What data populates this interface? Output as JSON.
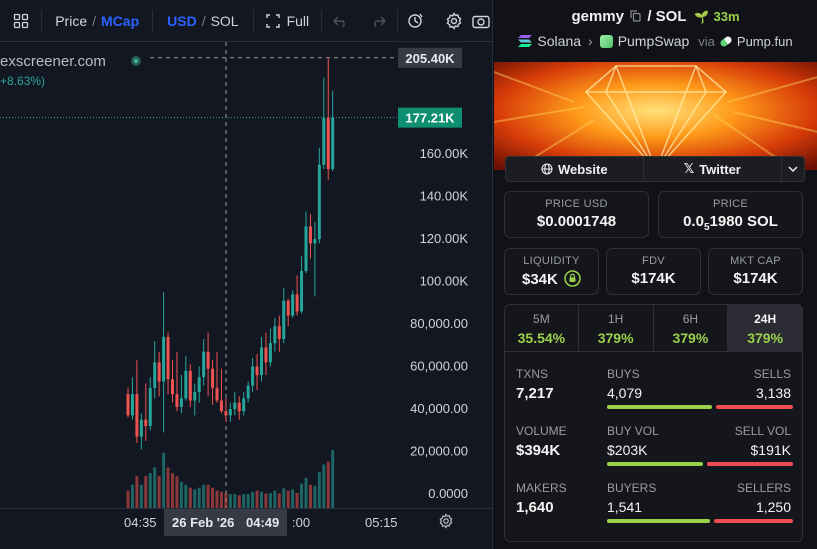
{
  "toolbar": {
    "price_label": "Price",
    "divider": "/",
    "mcap_label": "MCap",
    "usd_label": "USD",
    "sol_label": "SOL",
    "full_label": "Full"
  },
  "chart": {
    "watermark": "exscreener.com",
    "change_text": "+8.63%)",
    "high_marker": "205.40K",
    "current_marker": "177.21K",
    "crosshair_date": "26 Feb '26",
    "colors": {
      "up": "#26a69a",
      "down": "#ef5350",
      "background": "#131722",
      "marker": "#0f8f72"
    }
  },
  "chart_data": {
    "type": "candlestick",
    "ylim": [
      0,
      210000
    ],
    "y_tick_labels": [
      "0.0000",
      "20,000.00",
      "40,000.00",
      "60,000.00",
      "80,000.00",
      "100.00K",
      "120.00K",
      "140.00K",
      "160.00K"
    ],
    "y_tick_values": [
      0,
      20000,
      40000,
      60000,
      80000,
      100000,
      120000,
      140000,
      160000
    ],
    "x_tick_labels": [
      "04:35",
      "04:49",
      ":00",
      "05:15"
    ],
    "last_price_label": "177.21K",
    "high_label": "205.40K",
    "candles": [
      {
        "o": 47000,
        "h": 50000,
        "c": 37000,
        "l": 36000,
        "v": 0.3
      },
      {
        "o": 37000,
        "h": 55000,
        "c": 47000,
        "l": 35000,
        "v": 0.4
      },
      {
        "o": 47000,
        "h": 63000,
        "c": 27000,
        "l": 24000,
        "v": 0.55
      },
      {
        "o": 27000,
        "h": 38000,
        "c": 35000,
        "l": 21000,
        "v": 0.4
      },
      {
        "o": 35000,
        "h": 52000,
        "c": 32000,
        "l": 25000,
        "v": 0.55
      },
      {
        "o": 32000,
        "h": 55000,
        "c": 50000,
        "l": 30000,
        "v": 0.6
      },
      {
        "o": 50000,
        "h": 72000,
        "c": 62000,
        "l": 45000,
        "v": 0.7
      },
      {
        "o": 62000,
        "h": 67000,
        "c": 53000,
        "l": 46000,
        "v": 0.55
      },
      {
        "o": 53000,
        "h": 95000,
        "c": 74000,
        "l": 29000,
        "v": 0.95
      },
      {
        "o": 74000,
        "h": 76000,
        "c": 54000,
        "l": 47000,
        "v": 0.7
      },
      {
        "o": 54000,
        "h": 63000,
        "c": 47000,
        "l": 43000,
        "v": 0.6
      },
      {
        "o": 47000,
        "h": 67000,
        "c": 41000,
        "l": 39000,
        "v": 0.55
      },
      {
        "o": 41000,
        "h": 56000,
        "c": 45000,
        "l": 38000,
        "v": 0.45
      },
      {
        "o": 45000,
        "h": 65000,
        "c": 58000,
        "l": 44000,
        "v": 0.4
      },
      {
        "o": 58000,
        "h": 61000,
        "c": 44000,
        "l": 41000,
        "v": 0.35
      },
      {
        "o": 44000,
        "h": 52000,
        "c": 48000,
        "l": 37000,
        "v": 0.32
      },
      {
        "o": 48000,
        "h": 60000,
        "c": 55000,
        "l": 43000,
        "v": 0.35
      },
      {
        "o": 55000,
        "h": 73000,
        "c": 67000,
        "l": 51000,
        "v": 0.4
      },
      {
        "o": 67000,
        "h": 76000,
        "c": 59000,
        "l": 46000,
        "v": 0.4
      },
      {
        "o": 59000,
        "h": 63000,
        "c": 50000,
        "l": 42000,
        "v": 0.35
      },
      {
        "o": 50000,
        "h": 67000,
        "c": 44000,
        "l": 43000,
        "v": 0.3
      },
      {
        "o": 44000,
        "h": 59000,
        "c": 39000,
        "l": 38000,
        "v": 0.28
      },
      {
        "o": 39000,
        "h": 45000,
        "c": 37000,
        "l": 34000,
        "v": 0.26
      },
      {
        "o": 37000,
        "h": 43000,
        "c": 40000,
        "l": 34000,
        "v": 0.24
      },
      {
        "o": 40000,
        "h": 48000,
        "c": 43000,
        "l": 37000,
        "v": 0.24
      },
      {
        "o": 43000,
        "h": 46000,
        "c": 39000,
        "l": 35000,
        "v": 0.22
      },
      {
        "o": 39000,
        "h": 48000,
        "c": 45000,
        "l": 37000,
        "v": 0.24
      },
      {
        "o": 45000,
        "h": 53000,
        "c": 51000,
        "l": 43000,
        "v": 0.24
      },
      {
        "o": 51000,
        "h": 64000,
        "c": 60000,
        "l": 48000,
        "v": 0.28
      },
      {
        "o": 60000,
        "h": 66000,
        "c": 56000,
        "l": 49000,
        "v": 0.3
      },
      {
        "o": 56000,
        "h": 74000,
        "c": 69000,
        "l": 53000,
        "v": 0.28
      },
      {
        "o": 69000,
        "h": 76000,
        "c": 62000,
        "l": 56000,
        "v": 0.25
      },
      {
        "o": 62000,
        "h": 78000,
        "c": 71000,
        "l": 60000,
        "v": 0.26
      },
      {
        "o": 71000,
        "h": 83000,
        "c": 79000,
        "l": 67000,
        "v": 0.3
      },
      {
        "o": 79000,
        "h": 84000,
        "c": 73000,
        "l": 67000,
        "v": 0.25
      },
      {
        "o": 73000,
        "h": 97000,
        "c": 91000,
        "l": 71000,
        "v": 0.34
      },
      {
        "o": 91000,
        "h": 92000,
        "c": 84000,
        "l": 79000,
        "v": 0.3
      },
      {
        "o": 84000,
        "h": 96000,
        "c": 94000,
        "l": 83000,
        "v": 0.32
      },
      {
        "o": 94000,
        "h": 103000,
        "c": 86000,
        "l": 84000,
        "v": 0.26
      },
      {
        "o": 86000,
        "h": 112000,
        "c": 105000,
        "l": 85000,
        "v": 0.42
      },
      {
        "o": 105000,
        "h": 133000,
        "c": 126000,
        "l": 104000,
        "v": 0.52
      },
      {
        "o": 126000,
        "h": 132000,
        "c": 118000,
        "l": 111000,
        "v": 0.4
      },
      {
        "o": 118000,
        "h": 128000,
        "c": 120000,
        "l": 93000,
        "v": 0.38
      },
      {
        "o": 120000,
        "h": 163000,
        "c": 155000,
        "l": 118000,
        "v": 0.62
      },
      {
        "o": 155000,
        "h": 196000,
        "c": 177000,
        "l": 153000,
        "v": 0.75
      },
      {
        "o": 177000,
        "h": 205000,
        "c": 153000,
        "l": 148000,
        "v": 0.8
      },
      {
        "o": 153000,
        "h": 190000,
        "c": 177210,
        "l": 152000,
        "v": 1.0
      }
    ]
  },
  "token": {
    "name": "gemmy",
    "pair": "SOL",
    "age": "33m",
    "chain": "Solana",
    "dex": "PumpSwap",
    "via_label": "via",
    "launchpad": "Pump.fun"
  },
  "links": {
    "website": "Website",
    "twitter": "Twitter"
  },
  "metrics": {
    "price_usd_label": "PRICE USD",
    "price_usd": "$0.0001748",
    "price_label": "PRICE",
    "price_sol_prefix": "0.0",
    "price_sol_sub": "5",
    "price_sol_rest": "1980 SOL",
    "liquidity_label": "LIQUIDITY",
    "liquidity": "$34K",
    "fdv_label": "FDV",
    "fdv": "$174K",
    "mcap_label": "MKT CAP",
    "mcap": "$174K"
  },
  "timeframes": [
    {
      "label": "5M",
      "change": "35.54%",
      "active": false
    },
    {
      "label": "1H",
      "change": "379%",
      "active": false
    },
    {
      "label": "6H",
      "change": "379%",
      "active": false
    },
    {
      "label": "24H",
      "change": "379%",
      "active": true
    }
  ],
  "stats": {
    "txns_label": "TXNS",
    "txns": "7,217",
    "buys_label": "BUYS",
    "buys": "4,079",
    "sells_label": "SELLS",
    "sells": "3,138",
    "buys_ratio": 0.565,
    "volume_label": "VOLUME",
    "volume": "$394K",
    "buy_vol_label": "BUY VOL",
    "buy_vol": "$203K",
    "sell_vol_label": "SELL VOL",
    "sell_vol": "$191K",
    "buy_vol_ratio": 0.515,
    "makers_label": "MAKERS",
    "makers": "1,640",
    "buyers_label": "BUYERS",
    "buyers": "1,541",
    "sellers_label": "SELLERS",
    "sellers": "1,250",
    "buyers_ratio": 0.552,
    "colors": {
      "green": "#9ad14b",
      "red": "#ef4b52",
      "up_text": "#9ad14b"
    }
  }
}
